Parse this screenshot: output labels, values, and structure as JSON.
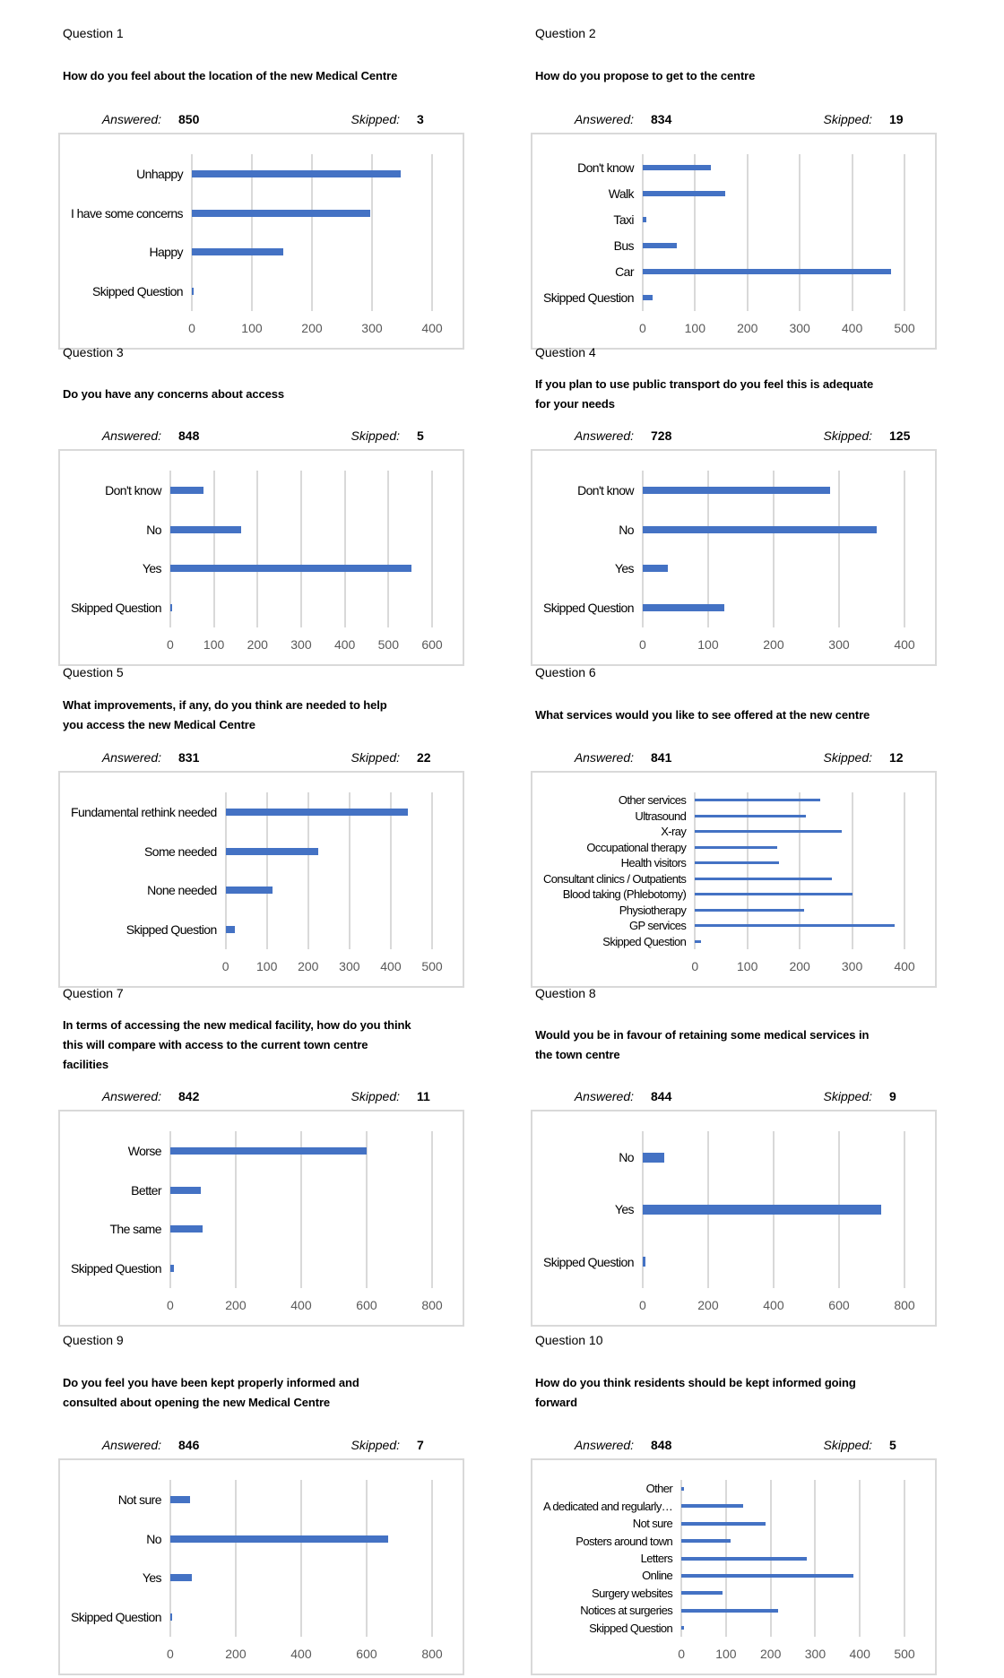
{
  "labels": {
    "answered": "Answered:",
    "skipped": "Skipped:"
  },
  "questions": [
    {
      "number": "Question 1",
      "title": "How do you feel about the location of the new Medical Centre",
      "answered": 850,
      "skipped": 3
    },
    {
      "number": "Question 2",
      "title": "How do you propose to get to the centre",
      "answered": 834,
      "skipped": 19
    },
    {
      "number": "Question 3",
      "title": "Do you have any concerns about access",
      "answered": 848,
      "skipped": 5
    },
    {
      "number": "Question 4",
      "title": "If you plan to use public transport do you feel this is adequate\nfor your needs",
      "answered": 728,
      "skipped": 125
    },
    {
      "number": "Question 5",
      "title": "What improvements, if any, do you think are needed to help\nyou access the new Medical Centre",
      "answered": 831,
      "skipped": 22
    },
    {
      "number": "Question 6",
      "title": "What services would you like to see offered at the new centre",
      "answered": 841,
      "skipped": 12
    },
    {
      "number": "Question 7",
      "title": "In terms of accessing the new medical facility, how do you think\nthis will compare with access to the current town centre\nfacilities",
      "answered": 842,
      "skipped": 11
    },
    {
      "number": "Question 8",
      "title": "Would you be in favour of retaining some medical services in\nthe town centre",
      "answered": 844,
      "skipped": 9
    },
    {
      "number": "Question 9",
      "title": "Do you feel you have been kept properly informed and\nconsulted about opening the new Medical Centre",
      "answered": 846,
      "skipped": 7
    },
    {
      "number": "Question 10",
      "title": "How do you think residents should be kept informed going\nforward",
      "answered": 848,
      "skipped": 5
    }
  ],
  "chart_data": [
    {
      "type": "bar",
      "orientation": "horizontal",
      "categories": [
        "Unhappy",
        "I have some concerns",
        "Happy",
        "Skipped Question"
      ],
      "values": [
        348,
        297,
        153,
        3
      ],
      "xlim": [
        0,
        400
      ],
      "ticks": [
        0,
        100,
        200,
        300,
        400
      ],
      "grid": true
    },
    {
      "type": "bar",
      "orientation": "horizontal",
      "categories": [
        "Don't know",
        "Walk",
        "Taxi",
        "Bus",
        "Car",
        "Skipped Question"
      ],
      "values": [
        130,
        158,
        7,
        65,
        474,
        19
      ],
      "xlim": [
        0,
        500
      ],
      "ticks": [
        0,
        100,
        200,
        300,
        400,
        500
      ],
      "grid": true
    },
    {
      "type": "bar",
      "orientation": "horizontal",
      "categories": [
        "Don't know",
        "No",
        "Yes",
        "Skipped Question"
      ],
      "values": [
        77,
        163,
        552,
        5
      ],
      "xlim": [
        0,
        600
      ],
      "ticks": [
        0,
        100,
        200,
        300,
        400,
        500,
        600
      ],
      "grid": true
    },
    {
      "type": "bar",
      "orientation": "horizontal",
      "categories": [
        "Don't know",
        "No",
        "Yes",
        "Skipped Question"
      ],
      "values": [
        287,
        358,
        39,
        125
      ],
      "xlim": [
        0,
        400
      ],
      "ticks": [
        0,
        100,
        200,
        300,
        400
      ],
      "grid": true
    },
    {
      "type": "bar",
      "orientation": "horizontal",
      "categories": [
        "Fundamental rethink needed",
        "Some needed",
        "None needed",
        "Skipped Question"
      ],
      "values": [
        441,
        225,
        114,
        22
      ],
      "xlim": [
        0,
        500
      ],
      "ticks": [
        0,
        100,
        200,
        300,
        400,
        500
      ],
      "grid": true
    },
    {
      "type": "bar",
      "orientation": "horizontal",
      "categories": [
        "Other services",
        "Ultrasound",
        "X-ray",
        "Occupational therapy",
        "Health visitors",
        "Consultant clinics / Outpatients",
        "Blood taking (Phlebotomy)",
        "Physiotherapy",
        "GP services",
        "Skipped Question"
      ],
      "values": [
        239,
        211,
        281,
        157,
        161,
        261,
        300,
        208,
        381,
        12
      ],
      "xlim": [
        0,
        400
      ],
      "ticks": [
        0,
        100,
        200,
        300,
        400
      ],
      "grid": true
    },
    {
      "type": "bar",
      "orientation": "horizontal",
      "categories": [
        "Worse",
        "Better",
        "The same",
        "Skipped Question"
      ],
      "values": [
        599,
        92,
        98,
        11
      ],
      "xlim": [
        0,
        800
      ],
      "ticks": [
        0,
        200,
        400,
        600,
        800
      ],
      "grid": true
    },
    {
      "type": "bar",
      "orientation": "horizontal",
      "categories": [
        "No",
        "Yes",
        "Skipped Question"
      ],
      "values": [
        67,
        728,
        9
      ],
      "xlim": [
        0,
        800
      ],
      "ticks": [
        0,
        200,
        400,
        600,
        800
      ],
      "grid": true
    },
    {
      "type": "bar",
      "orientation": "horizontal",
      "categories": [
        "Not sure",
        "No",
        "Yes",
        "Skipped Question"
      ],
      "values": [
        60,
        665,
        66,
        7
      ],
      "xlim": [
        0,
        800
      ],
      "ticks": [
        0,
        200,
        400,
        600,
        800
      ],
      "grid": true
    },
    {
      "type": "bar",
      "orientation": "horizontal",
      "categories": [
        "Other",
        "A dedicated and regularly…",
        "Not sure",
        "Posters around town",
        "Letters",
        "Online",
        "Surgery websites",
        "Notices at surgeries",
        "Skipped Question"
      ],
      "values": [
        5,
        139,
        188,
        110,
        282,
        385,
        93,
        216,
        5
      ],
      "xlim": [
        0,
        500
      ],
      "ticks": [
        0,
        100,
        200,
        300,
        400,
        500
      ],
      "grid": true
    }
  ]
}
